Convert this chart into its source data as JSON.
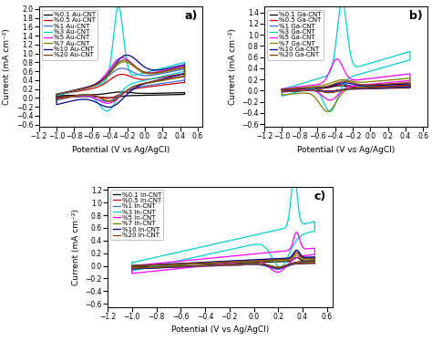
{
  "panel_a": {
    "label": "a)",
    "ylabel": "Current (mA cm⁻²)",
    "xlabel": "Potential (V vs Ag/AgCl)",
    "xlim": [
      -1.2,
      0.65
    ],
    "ylim": [
      -0.65,
      2.05
    ],
    "yticks": [
      -0.6,
      -0.4,
      -0.2,
      0.0,
      0.2,
      0.4,
      0.6,
      0.8,
      1.0,
      1.2,
      1.4,
      1.6,
      1.8,
      2.0
    ],
    "xticks": [
      -1.2,
      -1.0,
      -0.8,
      -0.6,
      -0.4,
      -0.2,
      0.0,
      0.2,
      0.4,
      0.6
    ],
    "series": [
      {
        "label": "%0.1 Au-CNT",
        "color": "#000000"
      },
      {
        "label": "%0.5 Au-CNT",
        "color": "#cc0000"
      },
      {
        "label": "%1 Au-CNT",
        "color": "#4169e1"
      },
      {
        "label": "%3 Au-CNT",
        "color": "#00ced1"
      },
      {
        "label": "%5 Au-CNT",
        "color": "#ff00ff"
      },
      {
        "label": "%7 Au-CNT",
        "color": "#808000"
      },
      {
        "label": "%10 Au-CNT",
        "color": "#00008b"
      },
      {
        "label": "%20 Au-CNT",
        "color": "#8b4513"
      }
    ]
  },
  "panel_b": {
    "label": "b)",
    "ylabel": "Current (mA cm⁻²)",
    "xlabel": "Potential (V vs Ag/AgCl)",
    "xlim": [
      -1.2,
      0.65
    ],
    "ylim": [
      -0.65,
      1.5
    ],
    "yticks": [
      -0.6,
      -0.4,
      -0.2,
      0.0,
      0.2,
      0.4,
      0.6,
      0.8,
      1.0,
      1.2,
      1.4
    ],
    "xticks": [
      -1.2,
      -1.0,
      -0.8,
      -0.6,
      -0.4,
      -0.2,
      0.0,
      0.2,
      0.4,
      0.6
    ],
    "series": [
      {
        "label": "%0.1 Ga-CNT",
        "color": "#000000"
      },
      {
        "label": "%0.5 Ga-CNT",
        "color": "#cc0000"
      },
      {
        "label": "%1 Ga-CNT",
        "color": "#4169e1"
      },
      {
        "label": "%3 Ga-CNT",
        "color": "#00ced1"
      },
      {
        "label": "%5 Ga-CNT",
        "color": "#ff00ff"
      },
      {
        "label": "%7 Ga-CNT",
        "color": "#808000"
      },
      {
        "label": "%10 Ga-CNT",
        "color": "#00008b"
      },
      {
        "label": "%20 Ga-CNT",
        "color": "#8b4513"
      }
    ]
  },
  "panel_c": {
    "label": "c)",
    "ylabel": "Current (mA cm⁻²)",
    "xlabel": "Potential (V vs Ag/AgCl)",
    "xlim": [
      -1.2,
      0.65
    ],
    "ylim": [
      -0.65,
      1.25
    ],
    "yticks": [
      -0.6,
      -0.4,
      -0.2,
      0.0,
      0.2,
      0.4,
      0.6,
      0.8,
      1.0,
      1.2
    ],
    "xticks": [
      -1.2,
      -1.0,
      -0.8,
      -0.6,
      -0.4,
      -0.2,
      0.0,
      0.2,
      0.4,
      0.6
    ],
    "series": [
      {
        "label": "%0.1 In-CNT",
        "color": "#000000"
      },
      {
        "label": "%0.5 In-CNT",
        "color": "#cc0000"
      },
      {
        "label": "%1 In-CNT",
        "color": "#4169e1"
      },
      {
        "label": "%3 In-CNT",
        "color": "#00ced1"
      },
      {
        "label": "%5 In-CNT",
        "color": "#ff00ff"
      },
      {
        "label": "%7 In-CNT",
        "color": "#808000"
      },
      {
        "label": "%10 In-CNT",
        "color": "#00008b"
      },
      {
        "label": "%20 In-CNT",
        "color": "#8b4513"
      }
    ]
  },
  "background_color": "#ffffff",
  "fontsize_label": 6.5,
  "fontsize_tick": 5.5,
  "fontsize_legend": 5.0,
  "fontsize_panel": 9,
  "linewidth": 0.9
}
